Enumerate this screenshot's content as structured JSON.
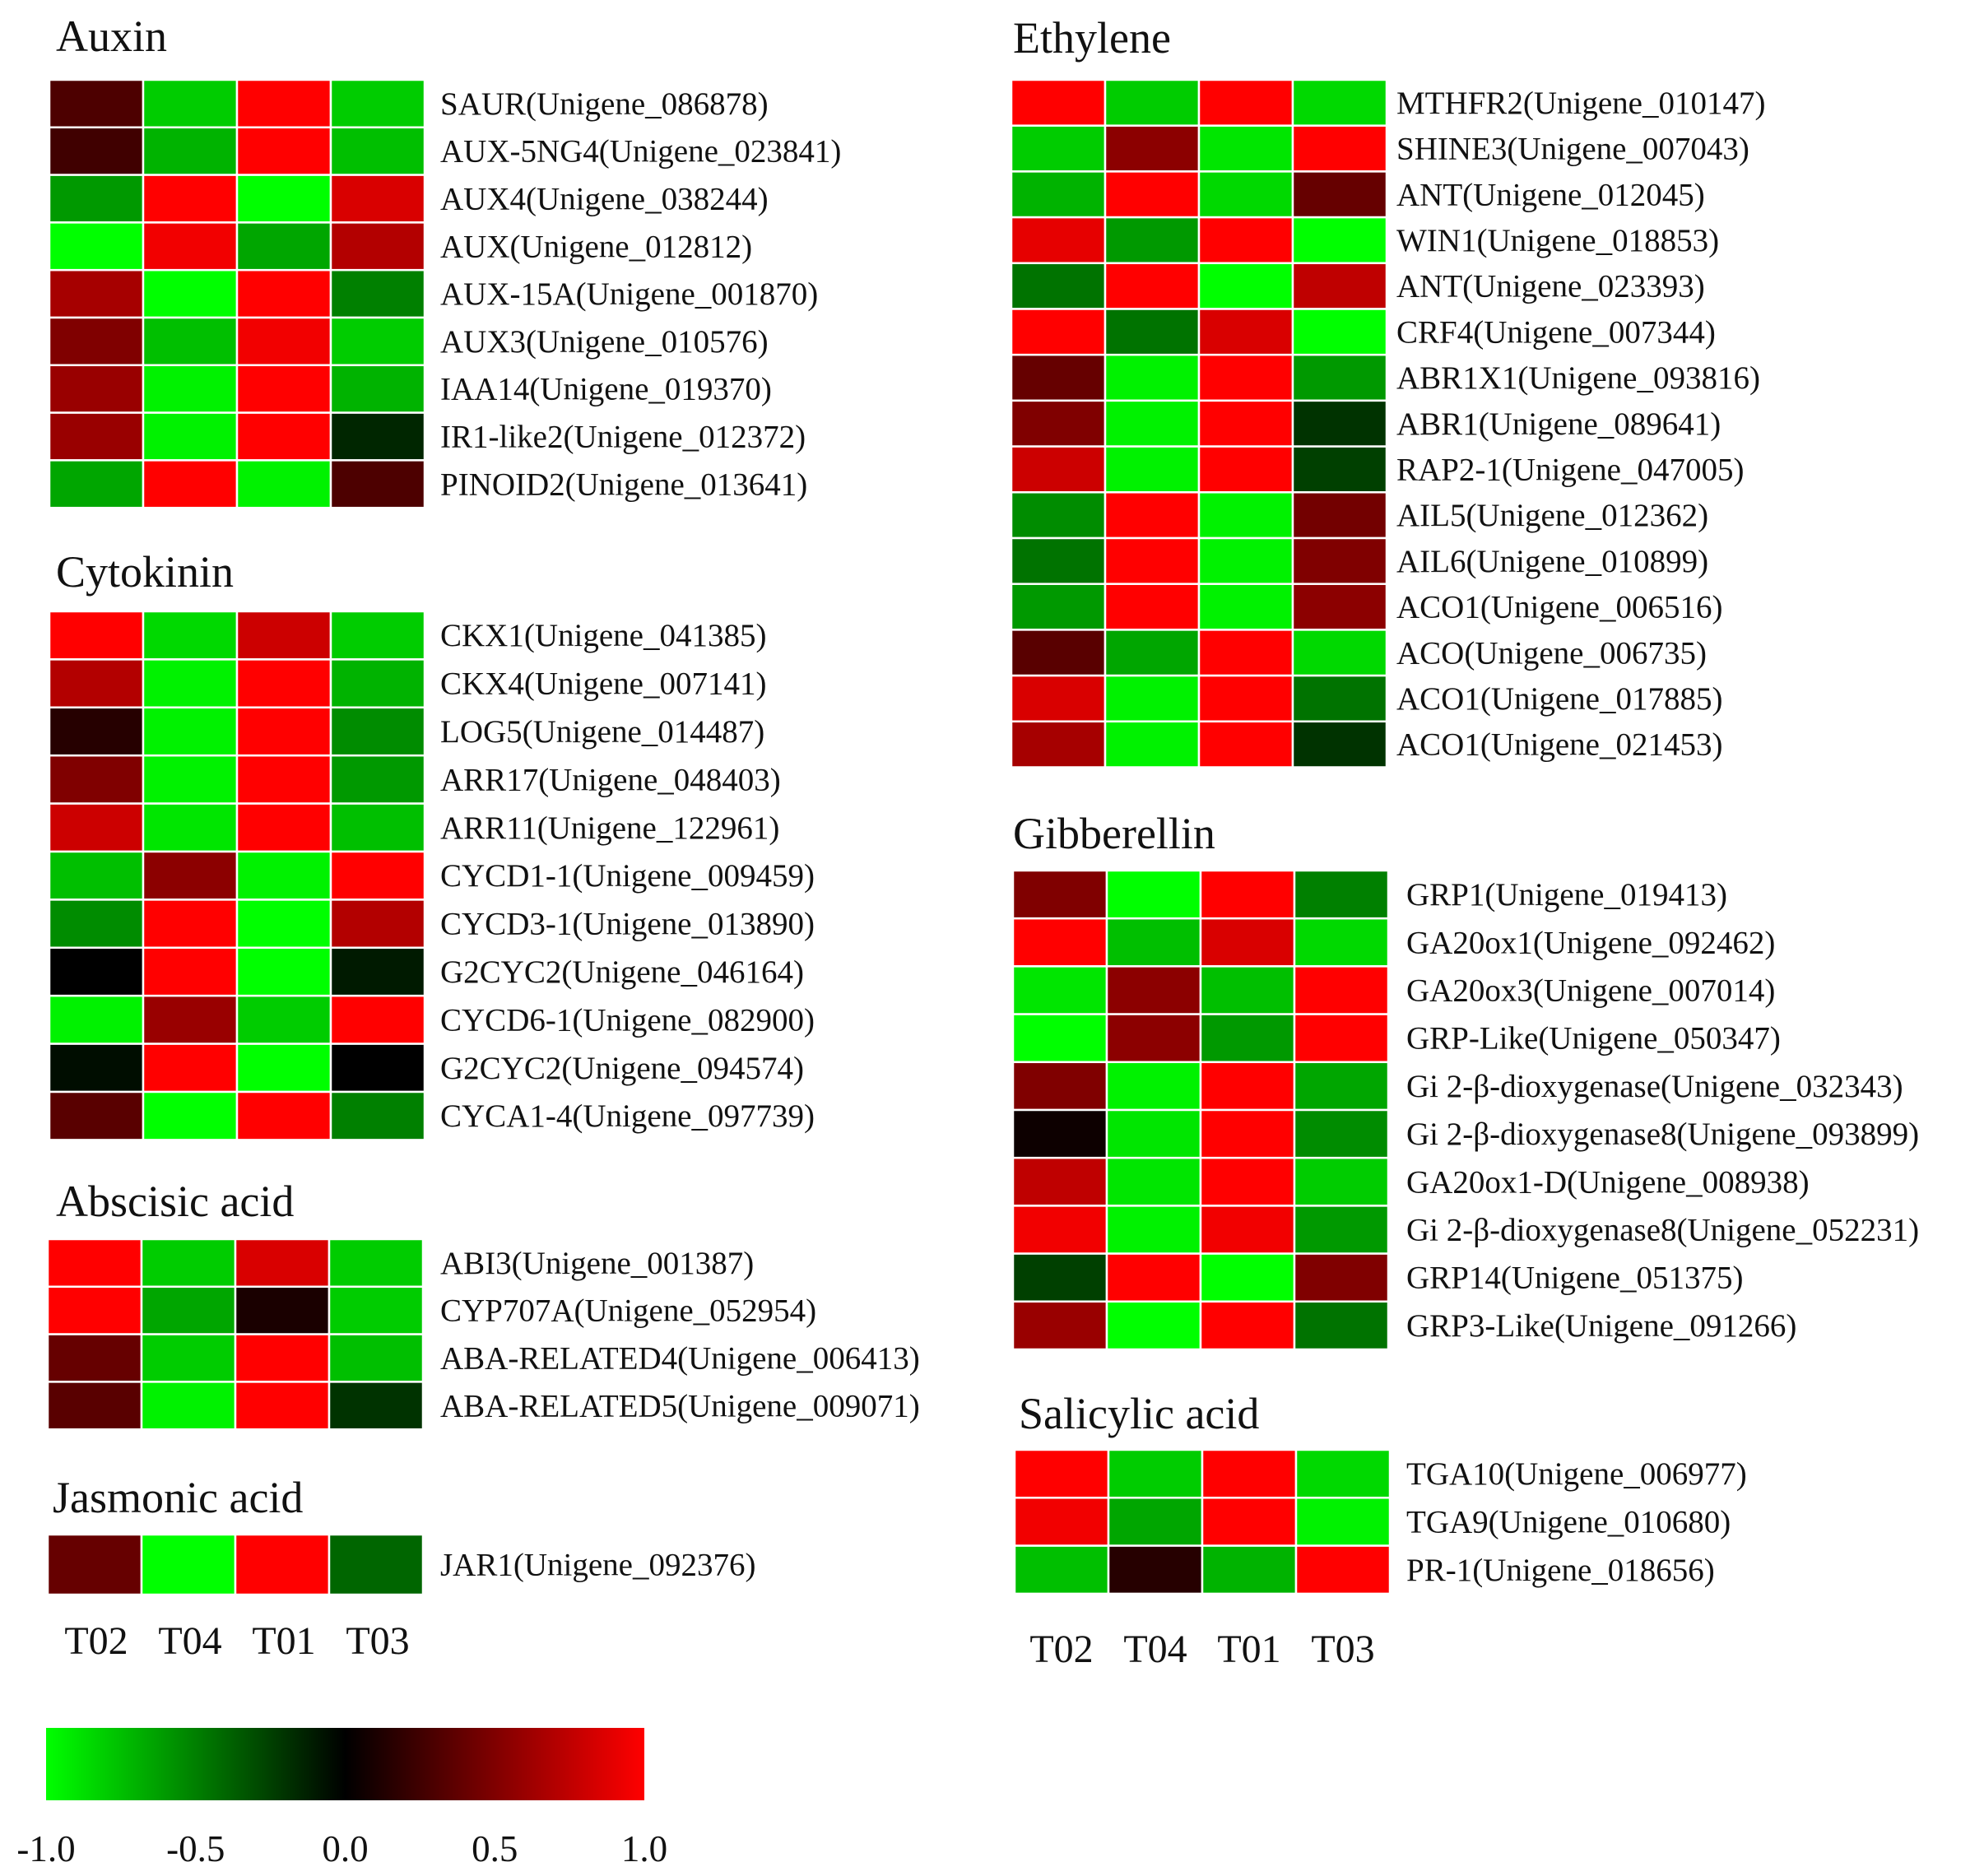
{
  "chart_data": {
    "type": "heatmap",
    "columns": [
      "T02",
      "T04",
      "T01",
      "T03"
    ],
    "colorbar": {
      "min": -1.0,
      "max": 1.0,
      "colors": [
        "#00ff00",
        "#000000",
        "#ff0000"
      ],
      "ticks": [
        "-1.0",
        "-0.5",
        "0.0",
        "0.5",
        "1.0"
      ]
    },
    "panels": [
      {
        "name": "auxin",
        "title": "Auxin",
        "rows": [
          {
            "label": "SAUR(Unigene_086878)",
            "values": [
              0.3,
              -0.8,
              1.0,
              -0.8
            ]
          },
          {
            "label": "AUX-5NG4(Unigene_023841)",
            "values": [
              0.25,
              -0.7,
              1.0,
              -0.75
            ]
          },
          {
            "label": "AUX4(Unigene_038244)",
            "values": [
              -0.6,
              1.0,
              -1.0,
              0.85
            ]
          },
          {
            "label": "AUX(Unigene_012812)",
            "values": [
              -1.0,
              0.95,
              -0.65,
              0.7
            ]
          },
          {
            "label": "AUX-15A(Unigene_001870)",
            "values": [
              0.65,
              -1.0,
              1.0,
              -0.5
            ]
          },
          {
            "label": "AUX3(Unigene_010576)",
            "values": [
              0.5,
              -0.75,
              0.95,
              -0.8
            ]
          },
          {
            "label": "IAA14(Unigene_019370)",
            "values": [
              0.6,
              -0.95,
              1.0,
              -0.7
            ]
          },
          {
            "label": "IR1-like2(Unigene_012372)",
            "values": [
              0.6,
              -0.95,
              1.0,
              -0.15
            ]
          },
          {
            "label": "PINOID2(Unigene_013641)",
            "values": [
              -0.65,
              1.0,
              -0.95,
              0.3
            ]
          }
        ]
      },
      {
        "name": "cytokinin",
        "title": "Cytokinin",
        "rows": [
          {
            "label": "CKX1(Unigene_041385)",
            "values": [
              1.0,
              -0.85,
              0.8,
              -0.8
            ]
          },
          {
            "label": "CKX4(Unigene_007141)",
            "values": [
              0.7,
              -0.95,
              1.0,
              -0.7
            ]
          },
          {
            "label": "LOG5(Unigene_014487)",
            "values": [
              0.15,
              -0.95,
              1.0,
              -0.55
            ]
          },
          {
            "label": "ARR17(Unigene_048403)",
            "values": [
              0.5,
              -0.95,
              1.0,
              -0.6
            ]
          },
          {
            "label": "ARR11(Unigene_122961)",
            "values": [
              0.8,
              -0.9,
              1.0,
              -0.75
            ]
          },
          {
            "label": "CYCD1-1(Unigene_009459)",
            "values": [
              -0.75,
              0.55,
              -0.95,
              1.0
            ]
          },
          {
            "label": "CYCD3-1(Unigene_013890)",
            "values": [
              -0.55,
              1.0,
              -1.0,
              0.7
            ]
          },
          {
            "label": "G2CYC2(Unigene_046164)",
            "values": [
              0.0,
              1.0,
              -1.0,
              -0.1
            ]
          },
          {
            "label": "CYCD6-1(Unigene_082900)",
            "values": [
              -0.95,
              0.6,
              -0.8,
              1.0
            ]
          },
          {
            "label": "G2CYC2(Unigene_094574)",
            "values": [
              -0.05,
              1.0,
              -1.0,
              0.0
            ]
          },
          {
            "label": "CYCA1-4(Unigene_097739)",
            "values": [
              0.35,
              -1.0,
              1.0,
              -0.5
            ]
          }
        ]
      },
      {
        "name": "abscisic-acid",
        "title": "Abscisic acid",
        "rows": [
          {
            "label": "ABI3(Unigene_001387)",
            "values": [
              1.0,
              -0.8,
              0.85,
              -0.8
            ]
          },
          {
            "label": "CYP707A(Unigene_052954)",
            "values": [
              1.0,
              -0.65,
              0.1,
              -0.8
            ]
          },
          {
            "label": "ABA-RELATED4(Unigene_006413)",
            "values": [
              0.4,
              -0.8,
              1.0,
              -0.75
            ]
          },
          {
            "label": "ABA-RELATED5(Unigene_009071)",
            "values": [
              0.35,
              -0.95,
              1.0,
              -0.2
            ]
          }
        ]
      },
      {
        "name": "jasmonic-acid",
        "title": "Jasmonic acid",
        "rows": [
          {
            "label": "JAR1(Unigene_092376)",
            "values": [
              0.4,
              -1.0,
              1.0,
              -0.4
            ]
          }
        ]
      },
      {
        "name": "ethylene",
        "title": "Ethylene",
        "rows": [
          {
            "label": "MTHFR2(Unigene_010147)",
            "values": [
              1.0,
              -0.8,
              1.0,
              -0.85
            ]
          },
          {
            "label": "SHINE3(Unigene_007043)",
            "values": [
              -0.8,
              0.55,
              -0.9,
              1.0
            ]
          },
          {
            "label": "ANT(Unigene_012045)",
            "values": [
              -0.7,
              1.0,
              -0.85,
              0.4
            ]
          },
          {
            "label": "WIN1(Unigene_018853)",
            "values": [
              0.9,
              -0.6,
              1.0,
              -1.0
            ]
          },
          {
            "label": "ANT(Unigene_023393)",
            "values": [
              -0.45,
              1.0,
              -1.0,
              0.75
            ]
          },
          {
            "label": "CRF4(Unigene_007344)",
            "values": [
              1.0,
              -0.45,
              0.85,
              -1.0
            ]
          },
          {
            "label": "ABR1X1(Unigene_093816)",
            "values": [
              0.4,
              -0.95,
              1.0,
              -0.6
            ]
          },
          {
            "label": "ABR1(Unigene_089641)",
            "values": [
              0.5,
              -0.95,
              1.0,
              -0.2
            ]
          },
          {
            "label": "RAP2-1(Unigene_047005)",
            "values": [
              0.8,
              -0.95,
              1.0,
              -0.25
            ]
          },
          {
            "label": "AIL5(Unigene_012362)",
            "values": [
              -0.55,
              1.0,
              -0.95,
              0.45
            ]
          },
          {
            "label": "AIL6(Unigene_010899)",
            "values": [
              -0.45,
              1.0,
              -0.95,
              0.5
            ]
          },
          {
            "label": "ACO1(Unigene_006516)",
            "values": [
              -0.6,
              1.0,
              -0.95,
              0.55
            ]
          },
          {
            "label": "ACO(Unigene_006735)",
            "values": [
              0.35,
              -0.65,
              1.0,
              -0.85
            ]
          },
          {
            "label": "ACO1(Unigene_017885)",
            "values": [
              0.85,
              -0.95,
              1.0,
              -0.45
            ]
          },
          {
            "label": "ACO1(Unigene_021453)",
            "values": [
              0.65,
              -0.95,
              1.0,
              -0.2
            ]
          }
        ]
      },
      {
        "name": "gibberellin",
        "title": "Gibberellin",
        "rows": [
          {
            "label": "GRP1(Unigene_019413)",
            "values": [
              0.5,
              -1.0,
              1.0,
              -0.5
            ]
          },
          {
            "label": "GA20ox1(Unigene_092462)",
            "values": [
              1.0,
              -0.75,
              0.85,
              -0.85
            ]
          },
          {
            "label": "GA20ox3(Unigene_007014)",
            "values": [
              -0.9,
              0.55,
              -0.75,
              1.0
            ]
          },
          {
            "label": "GRP-Like(Unigene_050347)",
            "values": [
              -1.0,
              0.55,
              -0.6,
              1.0
            ]
          },
          {
            "label": "Gi 2-β-dioxygenase(Unigene_032343)",
            "values": [
              0.5,
              -0.95,
              1.0,
              -0.65
            ]
          },
          {
            "label": "Gi 2-β-dioxygenase8(Unigene_093899)",
            "values": [
              0.05,
              -0.9,
              1.0,
              -0.55
            ]
          },
          {
            "label": "GA20ox1-D(Unigene_008938)",
            "values": [
              0.75,
              -0.9,
              1.0,
              -0.8
            ]
          },
          {
            "label": "Gi 2-β-dioxygenase8(Unigene_052231)",
            "values": [
              0.95,
              -0.95,
              0.95,
              -0.6
            ]
          },
          {
            "label": "GRP14(Unigene_051375)",
            "values": [
              -0.25,
              1.0,
              -1.0,
              0.5
            ]
          },
          {
            "label": "GRP3-Like(Unigene_091266)",
            "values": [
              0.6,
              -1.0,
              1.0,
              -0.45
            ]
          }
        ]
      },
      {
        "name": "salicylic-acid",
        "title": "Salicylic acid",
        "rows": [
          {
            "label": "TGA10(Unigene_006977)",
            "values": [
              1.0,
              -0.8,
              1.0,
              -0.85
            ]
          },
          {
            "label": "TGA9(Unigene_010680)",
            "values": [
              0.95,
              -0.65,
              1.0,
              -0.95
            ]
          },
          {
            "label": "PR-1(Unigene_018656)",
            "values": [
              -0.75,
              0.15,
              -0.7,
              1.0
            ]
          }
        ]
      }
    ]
  }
}
